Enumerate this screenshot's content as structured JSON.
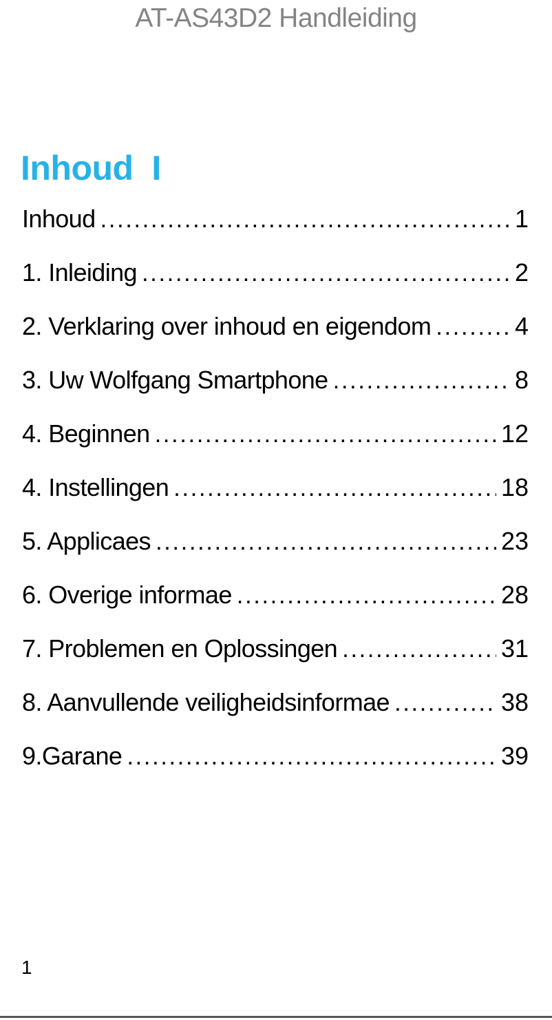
{
  "header": {
    "title": "AT-AS43D2 Handleiding"
  },
  "section": {
    "title": "Inhoud  I"
  },
  "toc": {
    "entries": [
      {
        "label": "Inhoud",
        "page": "1"
      },
      {
        "label": "1. Inleiding",
        "page": "2"
      },
      {
        "label": "2. Verklaring over inhoud en eigendom",
        "page": "4"
      },
      {
        "label": "3. Uw Wolfgang Smartphone",
        "page": "8"
      },
      {
        "label": "4. Beginnen",
        "page": "12"
      },
      {
        "label": "4. Instellingen",
        "page": "18"
      },
      {
        "label": "5. Applicaes",
        "page": "23"
      },
      {
        "label": "6. Overige informae",
        "page": "28"
      },
      {
        "label": "7. Problemen en Oplossingen",
        "page": "31"
      },
      {
        "label": "8. Aanvullende veiligheidsinformae",
        "page": "38"
      },
      {
        "label": "9.Garane",
        "page": "39"
      }
    ]
  },
  "footer": {
    "page_number": "1"
  },
  "colors": {
    "accent_cyan": "#27b2e7",
    "header_gray": "#848484",
    "body_text": "#000000",
    "bottom_rule": "#54565a"
  }
}
